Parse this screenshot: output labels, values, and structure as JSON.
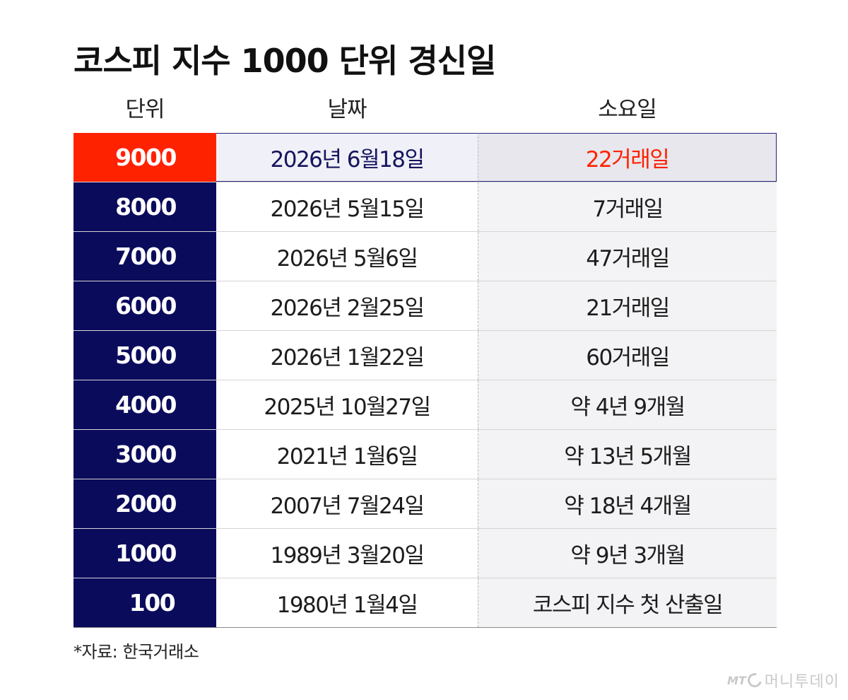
{
  "title": "코스피 지수 1000 단위 경신일",
  "headers": {
    "unit": "단위",
    "date": "날짜",
    "days": "소요일"
  },
  "rows": [
    {
      "unit": "9000",
      "date": "2026년 6월18일",
      "days": "22거래일",
      "highlight": true
    },
    {
      "unit": "8000",
      "date": "2026년 5월15일",
      "days": "7거래일"
    },
    {
      "unit": "7000",
      "date": "2026년 5월6일",
      "days": "47거래일"
    },
    {
      "unit": "6000",
      "date": "2026년 2월25일",
      "days": "21거래일"
    },
    {
      "unit": "5000",
      "date": "2026년 1월22일",
      "days": "60거래일"
    },
    {
      "unit": "4000",
      "date": "2025년 10월27일",
      "days": "약 4년 9개월"
    },
    {
      "unit": "3000",
      "date": "2021년 1월6일",
      "days": "약 13년 5개월"
    },
    {
      "unit": "2000",
      "date": "2007년 7월24일",
      "days": "약 18년 4개월"
    },
    {
      "unit": "1000",
      "date": "1989년 3월20일",
      "days": "약 9년 3개월"
    },
    {
      "unit": "100",
      "date": "1980년 1월4일",
      "days": "코스피 지수 첫 산출일"
    }
  ],
  "source": "*자료: 한국거래소",
  "logo": {
    "mark": "MT",
    "name": "머니투데이"
  },
  "colors": {
    "navy": "#0b0b5c",
    "highlight_red": "#ff2200",
    "highlight_text": "#14145e"
  }
}
